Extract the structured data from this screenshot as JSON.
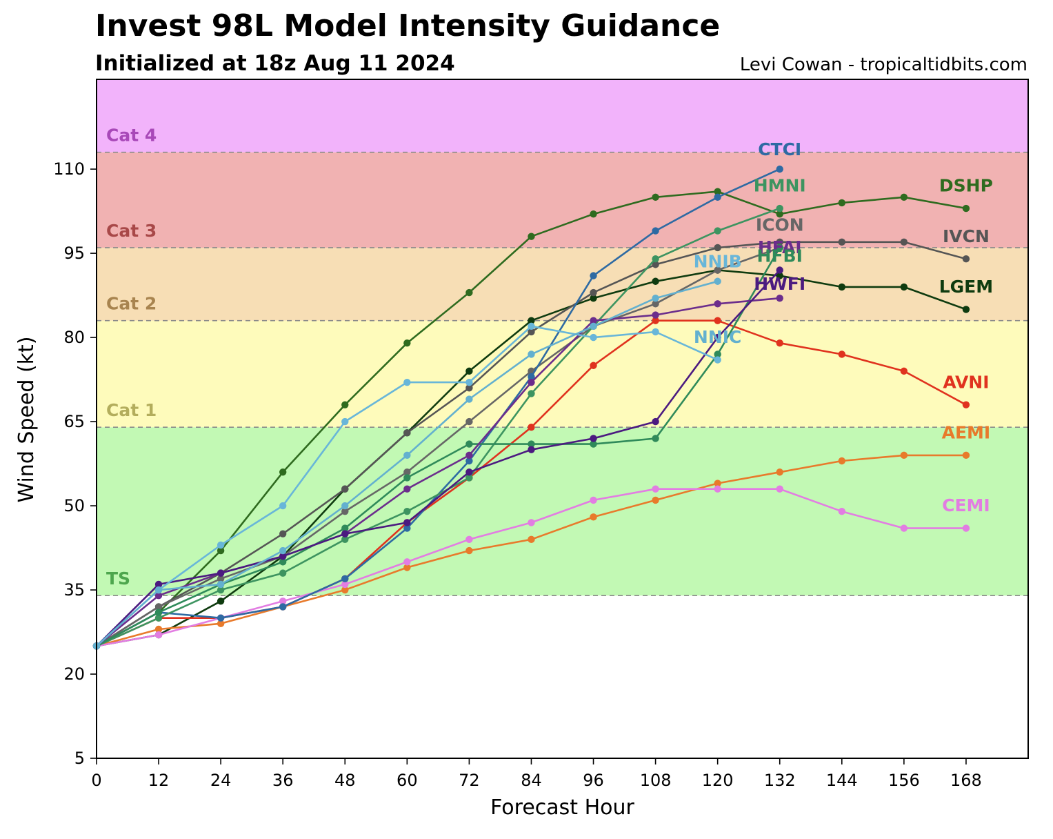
{
  "header": {
    "title": "Invest 98L Model Intensity Guidance",
    "subtitle": "Initialized at 18z Aug 11 2024",
    "credit": "Levi Cowan - tropicaltidbits.com"
  },
  "chart_data": {
    "type": "line",
    "title": "Invest 98L Model Intensity Guidance",
    "subtitle": "Initialized at 18z Aug 11 2024",
    "xlabel": "Forecast Hour",
    "ylabel": "Wind Speed (kt)",
    "xlim": [
      0,
      180
    ],
    "ylim": [
      5,
      126
    ],
    "x_ticks": [
      0,
      12,
      24,
      36,
      48,
      60,
      72,
      84,
      96,
      108,
      120,
      132,
      144,
      156,
      168
    ],
    "y_ticks": [
      5,
      20,
      35,
      50,
      65,
      80,
      95,
      110
    ],
    "grid": false,
    "category_bands": [
      {
        "label": "TS",
        "from": 34,
        "to": 64,
        "color": "#c2f9b4",
        "label_color": "#4da64d"
      },
      {
        "label": "Cat 1",
        "from": 64,
        "to": 83,
        "color": "#fefbbb",
        "label_color": "#b3ad5c"
      },
      {
        "label": "Cat 2",
        "from": 83,
        "to": 96,
        "color": "#f7deb5",
        "label_color": "#a8844f"
      },
      {
        "label": "Cat 3",
        "from": 96,
        "to": 113,
        "color": "#f1b2b2",
        "label_color": "#a84848"
      },
      {
        "label": "Cat 4",
        "from": 113,
        "to": 126,
        "color": "#f2b3fb",
        "label_color": "#a848b8"
      }
    ],
    "series": [
      {
        "name": "DSHP",
        "color": "#2f6b1f",
        "x": [
          0,
          12,
          24,
          36,
          48,
          60,
          72,
          84,
          96,
          108,
          120,
          132,
          144,
          156,
          168
        ],
        "y": [
          25,
          31,
          42,
          56,
          68,
          79,
          88,
          98,
          102,
          105,
          106,
          102,
          104,
          105,
          103
        ]
      },
      {
        "name": "LGEM",
        "color": "#0f3b0f",
        "x": [
          0,
          12,
          24,
          36,
          48,
          60,
          72,
          84,
          96,
          108,
          120,
          132,
          144,
          156,
          168
        ],
        "y": [
          25,
          27,
          33,
          41,
          53,
          63,
          74,
          83,
          87,
          90,
          92,
          91,
          89,
          89,
          85
        ]
      },
      {
        "name": "IVCN",
        "color": "#555555",
        "x": [
          0,
          12,
          24,
          36,
          48,
          60,
          72,
          84,
          96,
          108,
          120,
          132,
          144,
          156,
          168
        ],
        "y": [
          25,
          32,
          38,
          45,
          53,
          63,
          71,
          81,
          88,
          93,
          96,
          97,
          97,
          97,
          94
        ]
      },
      {
        "name": "ICON",
        "color": "#666666",
        "x": [
          0,
          12,
          24,
          36,
          48,
          60,
          72,
          84,
          96,
          108,
          120,
          132
        ],
        "y": [
          25,
          32,
          37,
          41,
          49,
          56,
          65,
          74,
          82,
          86,
          92,
          96
        ]
      },
      {
        "name": "AVNI",
        "color": "#e0321e",
        "x": [
          0,
          12,
          24,
          36,
          48,
          60,
          72,
          84,
          96,
          108,
          120,
          132,
          144,
          156,
          168
        ],
        "y": [
          25,
          30,
          30,
          32,
          37,
          47,
          55,
          64,
          75,
          83,
          83,
          79,
          77,
          74,
          68
        ]
      },
      {
        "name": "AEMI",
        "color": "#e87a2b",
        "x": [
          0,
          12,
          24,
          36,
          48,
          60,
          72,
          84,
          96,
          108,
          120,
          132,
          144,
          156,
          168
        ],
        "y": [
          25,
          28,
          29,
          32,
          35,
          39,
          42,
          44,
          48,
          51,
          54,
          56,
          58,
          59,
          59
        ]
      },
      {
        "name": "CEMI",
        "color": "#e27de2",
        "x": [
          0,
          12,
          24,
          36,
          48,
          60,
          72,
          84,
          96,
          108,
          120,
          132,
          144,
          156,
          168
        ],
        "y": [
          25,
          27,
          30,
          33,
          36,
          40,
          44,
          47,
          51,
          53,
          53,
          53,
          49,
          46,
          46
        ]
      },
      {
        "name": "CTCI",
        "color": "#2e6aa3",
        "x": [
          0,
          12,
          24,
          36,
          48,
          60,
          72,
          84,
          96,
          108,
          120,
          132
        ],
        "y": [
          25,
          31,
          30,
          32,
          37,
          46,
          58,
          73,
          91,
          99,
          105,
          110
        ]
      },
      {
        "name": "HMNI",
        "color": "#3d9460",
        "x": [
          0,
          12,
          24,
          36,
          48,
          60,
          72,
          84,
          96,
          108,
          120,
          132
        ],
        "y": [
          25,
          30,
          35,
          38,
          44,
          49,
          55,
          70,
          82,
          94,
          99,
          103
        ]
      },
      {
        "name": "HFBI",
        "color": "#2f8a5a",
        "x": [
          0,
          12,
          24,
          36,
          48,
          60,
          72,
          84,
          96,
          108,
          120,
          132
        ],
        "y": [
          25,
          31,
          36,
          40,
          46,
          55,
          61,
          61,
          61,
          62,
          77,
          96
        ]
      },
      {
        "name": "HFAI",
        "color": "#6b2d8c",
        "x": [
          0,
          12,
          24,
          36,
          48,
          60,
          72,
          84,
          96,
          108,
          120,
          132
        ],
        "y": [
          25,
          34,
          38,
          41,
          45,
          53,
          59,
          72,
          83,
          84,
          86,
          87
        ]
      },
      {
        "name": "HWFI",
        "color": "#4b1a80",
        "x": [
          0,
          12,
          24,
          36,
          48,
          60,
          72,
          84,
          96,
          108,
          120,
          132
        ],
        "y": [
          25,
          36,
          38,
          41,
          45,
          47,
          56,
          60,
          62,
          65,
          80,
          92
        ]
      },
      {
        "name": "NNIB",
        "color": "#68b6d9",
        "x": [
          0,
          12,
          24,
          36,
          48,
          60,
          72,
          84,
          96,
          108,
          120
        ],
        "y": [
          25,
          35,
          43,
          50,
          65,
          72,
          72,
          82,
          80,
          81,
          76
        ]
      },
      {
        "name": "NNIC",
        "color": "#63b0cf",
        "x": [
          0,
          12,
          24,
          36,
          48,
          60,
          72,
          84,
          96,
          108,
          120
        ],
        "y": [
          25,
          35,
          36,
          42,
          50,
          59,
          69,
          77,
          82,
          87,
          90
        ]
      }
    ],
    "series_labels": [
      {
        "name": "CTCI",
        "x": 132,
        "y": 112.5
      },
      {
        "name": "HMNI",
        "x": 132,
        "y": 106
      },
      {
        "name": "DSHP",
        "x": 168,
        "y": 106
      },
      {
        "name": "ICON",
        "x": 132,
        "y": 99
      },
      {
        "name": "IVCN",
        "x": 168,
        "y": 97
      },
      {
        "name": "NNIB",
        "x": 120,
        "y": 92.5
      },
      {
        "name": "HFAI",
        "x": 132,
        "y": 95
      },
      {
        "name": "HFBI",
        "x": 132,
        "y": 93.5
      },
      {
        "name": "HWFI",
        "x": 132,
        "y": 88.5
      },
      {
        "name": "LGEM",
        "x": 168,
        "y": 88
      },
      {
        "name": "NNIC",
        "x": 120,
        "y": 79
      },
      {
        "name": "AVNI",
        "x": 168,
        "y": 71
      },
      {
        "name": "AEMI",
        "x": 168,
        "y": 62
      },
      {
        "name": "CEMI",
        "x": 168,
        "y": 49
      }
    ]
  }
}
